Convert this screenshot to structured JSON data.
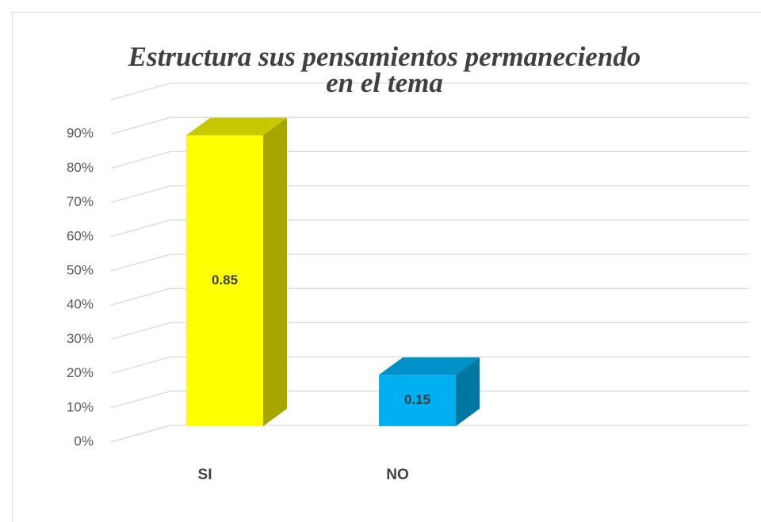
{
  "chart_data": {
    "type": "bar3d",
    "title": "Estructura sus pensamientos permaneciendo en el tema",
    "categories": [
      "SI",
      "NO"
    ],
    "series": [
      {
        "values": [
          85,
          15
        ],
        "value_labels": [
          "0.85",
          "0.15"
        ],
        "colors": [
          "#ffff00",
          "#00b0f0"
        ],
        "side_colors": [
          "#a6a600",
          "#0077a3"
        ],
        "top_colors": [
          "#c8c800",
          "#0091c8"
        ]
      }
    ],
    "ylim": [
      0,
      100
    ],
    "yticks": [
      {
        "value": 0,
        "label": "0%"
      },
      {
        "value": 10,
        "label": "10%"
      },
      {
        "value": 20,
        "label": "20%"
      },
      {
        "value": 30,
        "label": "30%"
      },
      {
        "value": 40,
        "label": "40%"
      },
      {
        "value": 50,
        "label": "50%"
      },
      {
        "value": 60,
        "label": "60%"
      },
      {
        "value": 70,
        "label": "70%"
      },
      {
        "value": 80,
        "label": "80%"
      },
      {
        "value": 90,
        "label": "90%"
      }
    ],
    "grid": true
  }
}
